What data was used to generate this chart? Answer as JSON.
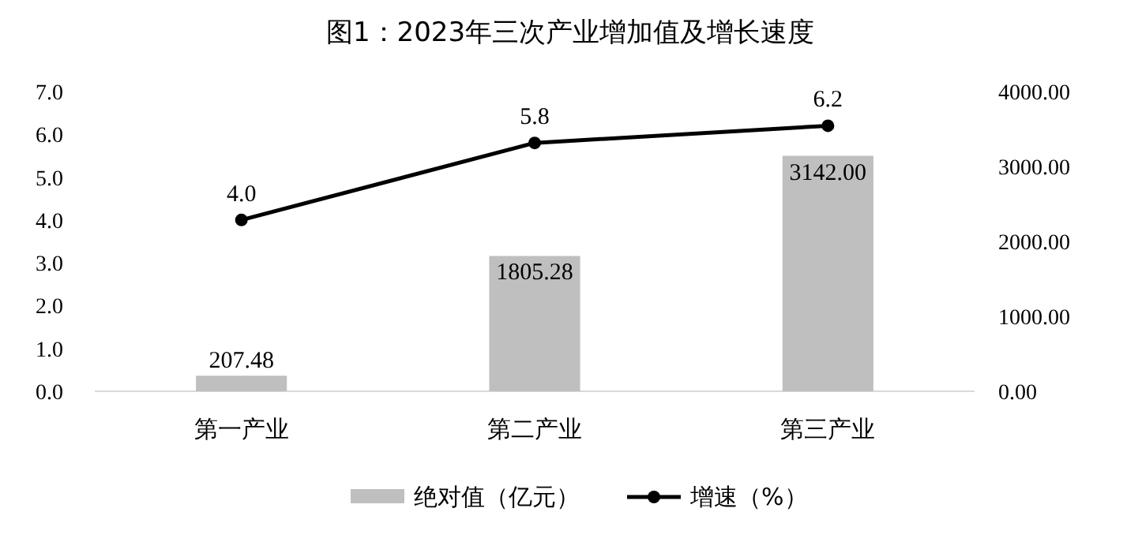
{
  "chart_data": {
    "type": "bar",
    "title": "图1：2023年三次产业增加值及增长速度",
    "categories": [
      "第一产业",
      "第二产业",
      "第三产业"
    ],
    "series": [
      {
        "name": "绝对值（亿元）",
        "axis": "y2",
        "color": "#bfbfbf",
        "values": [
          207.48,
          1805.28,
          3142.0
        ],
        "value_labels": [
          "207.48",
          "1805.28",
          "3142.00"
        ]
      },
      {
        "name": "增速（%）",
        "type": "line",
        "color": "#000000",
        "marker": "circle",
        "line_style": "solid",
        "values": [
          4.0,
          5.8,
          6.2
        ],
        "value_labels": [
          "4.0",
          "5.8",
          "6.2"
        ]
      }
    ],
    "ylim": [
      0,
      7
    ],
    "yticks": [
      {
        "value": 0,
        "label": "0.0"
      },
      {
        "value": 1,
        "label": "1.0"
      },
      {
        "value": 2,
        "label": "2.0"
      },
      {
        "value": 3,
        "label": "3.0"
      },
      {
        "value": 4,
        "label": "4.0"
      },
      {
        "value": 5,
        "label": "5.0"
      },
      {
        "value": 6,
        "label": "6.0"
      },
      {
        "value": 7,
        "label": "7.0"
      }
    ],
    "y2lim": [
      0,
      4000
    ],
    "y2ticks": [
      {
        "value": 0,
        "label": "0.00"
      },
      {
        "value": 1000,
        "label": "1000.00"
      },
      {
        "value": 2000,
        "label": "2000.00"
      },
      {
        "value": 3000,
        "label": "3000.00"
      },
      {
        "value": 4000,
        "label": "4000.00"
      }
    ],
    "legend": "bottom",
    "grid": false
  }
}
